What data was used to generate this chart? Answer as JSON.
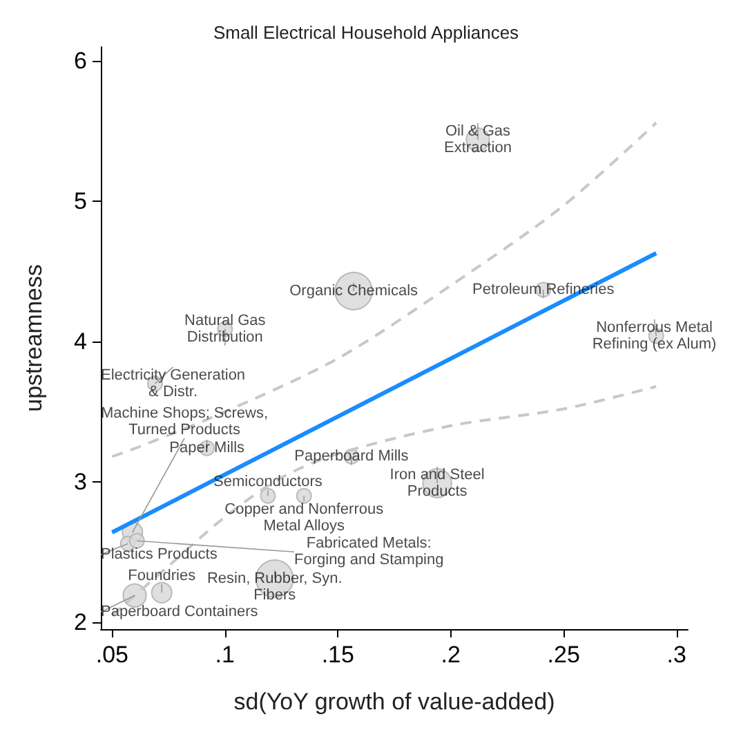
{
  "chart_data": {
    "type": "bubble",
    "title": "Small Electrical Household Appliances",
    "xlabel": "sd(YoY growth of value-added)",
    "ylabel": "upstreamness",
    "xlim": [
      0.045,
      0.305
    ],
    "ylim": [
      1.95,
      6.1
    ],
    "xticks": [
      {
        "value": 0.05,
        "label": ".05"
      },
      {
        "value": 0.1,
        "label": ".1"
      },
      {
        "value": 0.15,
        "label": ".15"
      },
      {
        "value": 0.2,
        "label": ".2"
      },
      {
        "value": 0.25,
        "label": ".25"
      },
      {
        "value": 0.3,
        "label": ".3"
      }
    ],
    "yticks": [
      2,
      3,
      4,
      5,
      6
    ],
    "grid": false,
    "series": [
      {
        "type": "bubble",
        "color": "#d9d9d9",
        "marker": "circle",
        "x": [
          0.212,
          0.157,
          0.241,
          0.291,
          0.1,
          0.069,
          0.092,
          0.156,
          0.194,
          0.135,
          0.119,
          0.059,
          0.057,
          0.061,
          0.122,
          0.072,
          0.06
        ],
        "values": [
          5.44,
          4.36,
          4.37,
          4.04,
          4.09,
          3.7,
          3.24,
          3.18,
          2.99,
          2.9,
          2.9,
          2.64,
          2.56,
          2.58,
          2.31,
          2.21,
          2.19
        ],
        "sizes": [
          0.38,
          1,
          0.15,
          0.15,
          0.15,
          0.15,
          0.15,
          0.15,
          0.59,
          0.15,
          0.15,
          0.29,
          0.15,
          0.15,
          1,
          0.29,
          0.38
        ]
      },
      {
        "type": "line",
        "color": "#1a8cff",
        "line_style": "solid",
        "marker": "none",
        "x": [
          0.05,
          0.291
        ],
        "values": [
          2.64,
          4.63
        ]
      },
      {
        "type": "line",
        "color": "#c8c8c8",
        "line_style": "dashed",
        "marker": "none",
        "x": [
          0.05,
          0.062,
          0.1,
          0.15,
          0.2,
          0.25,
          0.291
        ],
        "values": [
          3.18,
          3.25,
          3.5,
          3.88,
          4.4,
          4.97,
          5.56
        ]
      },
      {
        "type": "line",
        "color": "#c8c8c8",
        "line_style": "dashed",
        "marker": "none",
        "x": [
          0.05,
          0.075,
          0.1,
          0.125,
          0.15,
          0.2,
          0.25,
          0.291
        ],
        "values": [
          2.05,
          2.4,
          2.75,
          3.03,
          3.2,
          3.4,
          3.52,
          3.68
        ]
      }
    ],
    "annotations": [
      {
        "text": "Oil & Gas\nExtraction",
        "x": 0.212,
        "y": 5.44
      },
      {
        "text": "Organic Chemicals",
        "x": 0.157,
        "y": 4.36
      },
      {
        "text": "Petroleum Refineries",
        "x": 0.241,
        "y": 4.37
      },
      {
        "text": "Nonferrous Metal\nRefining (ex Alum)",
        "x": 0.291,
        "y": 4.04
      },
      {
        "text": "Natural Gas\nDistribution",
        "x": 0.1,
        "y": 4.09
      },
      {
        "text": "Electricity Generation\n& Distr.",
        "x": 0.069,
        "y": 3.7
      },
      {
        "text": "Paper Mills",
        "x": 0.092,
        "y": 3.24
      },
      {
        "text": "Paperboard Mills",
        "x": 0.156,
        "y": 3.18
      },
      {
        "text": "Iron and Steel\nProducts",
        "x": 0.194,
        "y": 2.99
      },
      {
        "text": "Copper and Nonferrous\nMetal Alloys",
        "x": 0.135,
        "y": 2.9
      },
      {
        "text": "Semiconductors",
        "x": 0.119,
        "y": 2.9
      },
      {
        "text": "Machine Shops; Screws,\nTurned Products",
        "x": 0.059,
        "y": 2.64
      },
      {
        "text": "Plastics Products",
        "x": 0.057,
        "y": 2.56
      },
      {
        "text": "Fabricated Metals:\nForging and Stamping",
        "x": 0.061,
        "y": 2.58
      },
      {
        "text": "Resin, Rubber, Syn.\nFibers",
        "x": 0.122,
        "y": 2.31
      },
      {
        "text": "Foundries",
        "x": 0.072,
        "y": 2.21
      },
      {
        "text": "Paperboard Containers",
        "x": 0.06,
        "y": 2.19
      }
    ]
  }
}
